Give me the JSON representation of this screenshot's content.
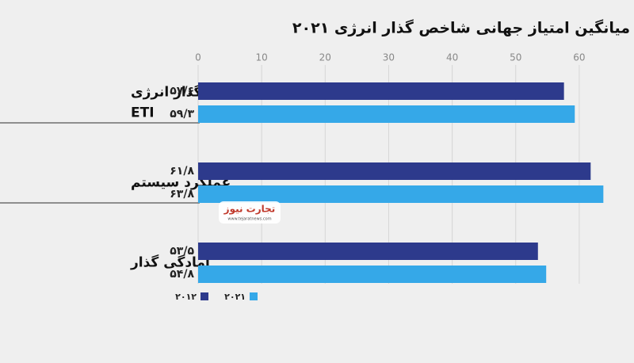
{
  "chart_data": {
    "type": "bar",
    "orientation": "horizontal",
    "title": "میانگین امتیاز جهانی شاخص گذار انرژی ۲۰۲۱",
    "categories": [
      [
        "شاخص گذار انرژی",
        "ETI"
      ],
      [
        "عملکرد سیستم"
      ],
      [
        "آمادگی گذار"
      ]
    ],
    "series": [
      {
        "name": "۲۰۱۲",
        "color": "#2d3a8c",
        "values": [
          57.6,
          61.8,
          53.5
        ],
        "value_labels": [
          "۵۷/۶",
          "۶۱/۸",
          "۵۳/۵"
        ]
      },
      {
        "name": "۲۰۲۱",
        "color": "#35a8e8",
        "values": [
          59.3,
          63.8,
          54.8
        ],
        "value_labels": [
          "۵۹/۳",
          "۶۳/۸",
          "۵۴/۸"
        ]
      }
    ],
    "xlim": [
      0,
      68
    ],
    "xticks": [
      0,
      10,
      20,
      30,
      40,
      50,
      60
    ],
    "grid": true,
    "watermark": [
      "تجارت نیوز",
      "www.tejaratnews.com"
    ]
  }
}
